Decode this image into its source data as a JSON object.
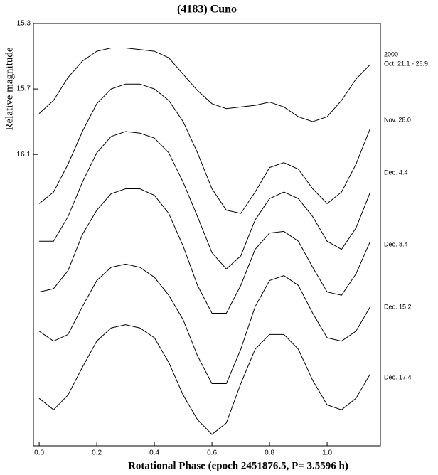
{
  "chart_data": {
    "type": "line",
    "title": "(4183) Cuno",
    "xlabel": "Rotational Phase (epoch 2451876.5, P= 3.5596 h)",
    "ylabel": "Relative magnitude",
    "x": [
      0,
      0.05,
      0.1,
      0.15,
      0.2,
      0.25,
      0.3,
      0.35,
      0.4,
      0.45,
      0.5,
      0.55,
      0.6,
      0.65,
      0.7,
      0.75,
      0.8,
      0.85,
      0.9,
      0.95,
      1.0,
      1.05,
      1.1,
      1.15
    ],
    "xlim": [
      -0.02,
      1.185
    ],
    "xticks": [
      {
        "value": 0,
        "label": "0.0"
      },
      {
        "value": 0.2,
        "label": "0.2"
      },
      {
        "value": 0.4,
        "label": "0.4"
      },
      {
        "value": 0.6,
        "label": "0.6"
      },
      {
        "value": 0.8,
        "label": "0.8"
      },
      {
        "value": 1,
        "label": "1.0"
      }
    ],
    "ylim": [
      15.3,
      17.88
    ],
    "y_inverted": true,
    "yticks": [
      15.3,
      15.7,
      16.1
    ],
    "year_label": "2000",
    "series": [
      {
        "name": "Oct. 21.1 - 26.9",
        "color": "#000000",
        "values": [
          15.85,
          15.77,
          15.63,
          15.53,
          15.47,
          15.45,
          15.45,
          15.46,
          15.47,
          15.51,
          15.61,
          15.71,
          15.79,
          15.82,
          15.81,
          15.8,
          15.78,
          15.81,
          15.87,
          15.9,
          15.87,
          15.77,
          15.64,
          15.55
        ]
      },
      {
        "name": "Nov. 28.0",
        "color": "#000000",
        "values": [
          16.4,
          16.33,
          16.16,
          15.96,
          15.79,
          15.7,
          15.67,
          15.67,
          15.7,
          15.77,
          15.9,
          16.09,
          16.31,
          16.44,
          16.46,
          16.33,
          16.18,
          16.15,
          16.19,
          16.31,
          16.4,
          16.33,
          16.16,
          15.94
        ]
      },
      {
        "name": "Dec. 4.4",
        "color": "#000000",
        "values": [
          16.63,
          16.63,
          16.48,
          16.27,
          16.09,
          15.99,
          15.96,
          15.97,
          16.0,
          16.09,
          16.27,
          16.48,
          16.7,
          16.8,
          16.72,
          16.5,
          16.37,
          16.33,
          16.37,
          16.48,
          16.63,
          16.68,
          16.55,
          16.33
        ]
      },
      {
        "name": "Dec. 8.4",
        "color": "#000000",
        "values": [
          16.94,
          16.92,
          16.81,
          16.59,
          16.44,
          16.34,
          16.31,
          16.31,
          16.35,
          16.46,
          16.66,
          16.9,
          17.07,
          17.07,
          16.9,
          16.68,
          16.58,
          16.57,
          16.63,
          16.79,
          16.94,
          16.96,
          16.83,
          16.63
        ]
      },
      {
        "name": "Dec. 15.2",
        "color": "#000000",
        "values": [
          17.18,
          17.24,
          17.2,
          17.03,
          16.87,
          16.79,
          16.77,
          16.79,
          16.85,
          16.96,
          17.11,
          17.33,
          17.5,
          17.5,
          17.29,
          17.03,
          16.87,
          16.84,
          16.9,
          17.07,
          17.22,
          17.24,
          17.18,
          17.03
        ]
      },
      {
        "name": "Dec. 17.4",
        "color": "#000000",
        "values": [
          17.59,
          17.66,
          17.57,
          17.4,
          17.24,
          17.16,
          17.14,
          17.16,
          17.22,
          17.37,
          17.57,
          17.72,
          17.81,
          17.74,
          17.5,
          17.29,
          17.2,
          17.2,
          17.29,
          17.48,
          17.63,
          17.66,
          17.59,
          17.44
        ]
      }
    ]
  }
}
